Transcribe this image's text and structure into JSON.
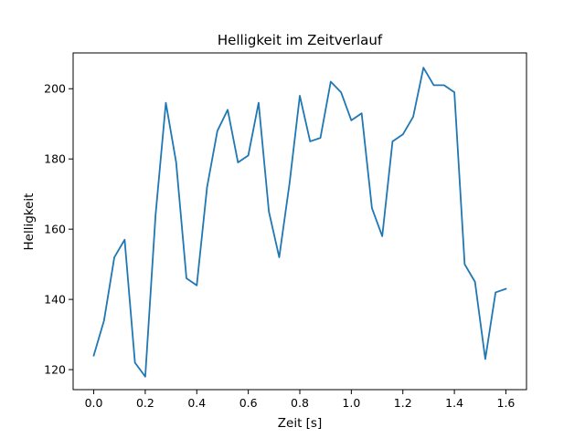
{
  "chart_data": {
    "type": "line",
    "title": "Helligkeit im Zeitverlauf",
    "xlabel": "Zeit [s]",
    "ylabel": "Helligkeit",
    "xlim": [
      -0.08,
      1.68
    ],
    "ylim": [
      114.3,
      210.2
    ],
    "xticks": [
      0.0,
      0.2,
      0.4,
      0.6,
      0.8,
      1.0,
      1.2,
      1.4,
      1.6
    ],
    "xtick_labels": [
      "0.0",
      "0.2",
      "0.4",
      "0.6",
      "0.8",
      "1.0",
      "1.2",
      "1.4",
      "1.6"
    ],
    "yticks": [
      120,
      140,
      160,
      180,
      200
    ],
    "ytick_labels": [
      "120",
      "140",
      "160",
      "180",
      "200"
    ],
    "grid": false,
    "legend": "none",
    "line_color": "#1f77b4",
    "series": [
      {
        "x": [
          0.0,
          0.04,
          0.08,
          0.12,
          0.16,
          0.2,
          0.24,
          0.28,
          0.32,
          0.36,
          0.4,
          0.44,
          0.48,
          0.52,
          0.56,
          0.6,
          0.64,
          0.68,
          0.72,
          0.76,
          0.8,
          0.84,
          0.88,
          0.92,
          0.96,
          1.0,
          1.04,
          1.08,
          1.12,
          1.16,
          1.2,
          1.24,
          1.28,
          1.32,
          1.36,
          1.4,
          1.44,
          1.48,
          1.52,
          1.56,
          1.6
        ],
        "y": [
          124,
          134,
          152,
          157,
          122,
          118,
          164,
          196,
          179,
          146,
          144,
          172,
          188,
          194,
          179,
          181,
          196,
          165,
          152,
          173,
          198,
          185,
          186,
          202,
          199,
          191,
          193,
          166,
          158,
          185,
          187,
          192,
          206,
          201,
          201,
          199,
          150,
          145,
          123,
          142,
          143
        ]
      }
    ]
  }
}
